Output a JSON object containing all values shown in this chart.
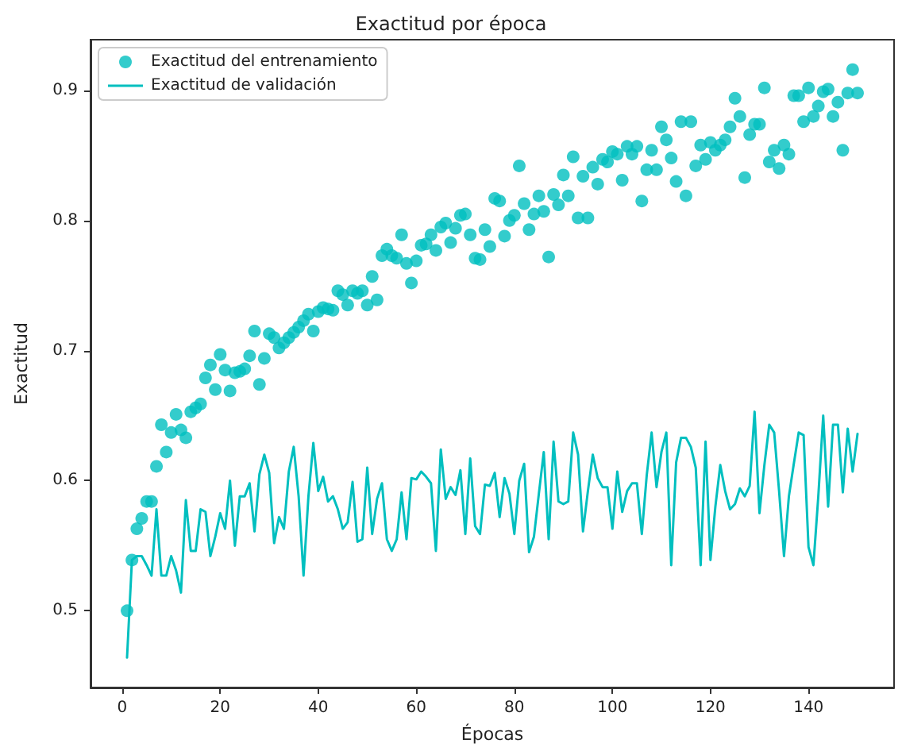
{
  "chart_data": {
    "type": "scatter",
    "title": "Exactitud por época",
    "xlabel": "Épocas",
    "ylabel": "Exactitud",
    "x": [
      1,
      2,
      3,
      4,
      5,
      6,
      7,
      8,
      9,
      10,
      11,
      12,
      13,
      14,
      15,
      16,
      17,
      18,
      19,
      20,
      21,
      22,
      23,
      24,
      25,
      26,
      27,
      28,
      29,
      30,
      31,
      32,
      33,
      34,
      35,
      36,
      37,
      38,
      39,
      40,
      41,
      42,
      43,
      44,
      45,
      46,
      47,
      48,
      49,
      50,
      51,
      52,
      53,
      54,
      55,
      56,
      57,
      58,
      59,
      60,
      61,
      62,
      63,
      64,
      65,
      66,
      67,
      68,
      69,
      70,
      71,
      72,
      73,
      74,
      75,
      76,
      77,
      78,
      79,
      80,
      81,
      82,
      83,
      84,
      85,
      86,
      87,
      88,
      89,
      90,
      91,
      92,
      93,
      94,
      95,
      96,
      97,
      98,
      99,
      100,
      101,
      102,
      103,
      104,
      105,
      106,
      107,
      108,
      109,
      110,
      111,
      112,
      113,
      114,
      115,
      116,
      117,
      118,
      119,
      120,
      121,
      122,
      123,
      124,
      125,
      126,
      127,
      128,
      129,
      130,
      131,
      132,
      133,
      134,
      135,
      136,
      137,
      138,
      139,
      140,
      141,
      142,
      143,
      144,
      145,
      146,
      147,
      148,
      149,
      150
    ],
    "xlim": [
      -6.45,
      157.45
    ],
    "xticks": [
      0,
      20,
      40,
      60,
      80,
      100,
      120,
      140
    ],
    "ylim": [
      0.441,
      0.939
    ],
    "yticks": [
      0.5,
      0.6,
      0.7,
      0.8,
      0.9
    ],
    "legend": "top left",
    "series": [
      {
        "name": "Exactitud del entrenamiento",
        "marker": "circle",
        "color": "#00bfbf",
        "values": [
          0.5,
          0.539,
          0.563,
          0.571,
          0.584,
          0.584,
          0.611,
          0.643,
          0.622,
          0.637,
          0.651,
          0.639,
          0.633,
          0.653,
          0.656,
          0.659,
          0.679,
          0.689,
          0.67,
          0.697,
          0.685,
          0.669,
          0.683,
          0.684,
          0.686,
          0.696,
          0.715,
          0.674,
          0.694,
          0.713,
          0.71,
          0.702,
          0.706,
          0.71,
          0.714,
          0.718,
          0.723,
          0.728,
          0.715,
          0.73,
          0.733,
          0.732,
          0.731,
          0.746,
          0.743,
          0.735,
          0.746,
          0.744,
          0.746,
          0.735,
          0.757,
          0.739,
          0.773,
          0.778,
          0.773,
          0.771,
          0.789,
          0.767,
          0.752,
          0.769,
          0.781,
          0.782,
          0.789,
          0.777,
          0.795,
          0.798,
          0.783,
          0.794,
          0.804,
          0.805,
          0.789,
          0.771,
          0.77,
          0.793,
          0.78,
          0.817,
          0.815,
          0.788,
          0.8,
          0.804,
          0.842,
          0.813,
          0.793,
          0.805,
          0.819,
          0.807,
          0.772,
          0.82,
          0.812,
          0.835,
          0.819,
          0.849,
          0.802,
          0.834,
          0.802,
          0.841,
          0.828,
          0.847,
          0.845,
          0.853,
          0.851,
          0.831,
          0.857,
          0.851,
          0.857,
          0.815,
          0.839,
          0.854,
          0.839,
          0.872,
          0.862,
          0.848,
          0.83,
          0.876,
          0.819,
          0.876,
          0.842,
          0.858,
          0.847,
          0.86,
          0.854,
          0.858,
          0.862,
          0.872,
          0.894,
          0.88,
          0.833,
          0.866,
          0.874,
          0.874,
          0.902,
          0.845,
          0.854,
          0.84,
          0.858,
          0.851,
          0.896,
          0.896,
          0.876,
          0.902,
          0.88,
          0.888,
          0.899,
          0.901,
          0.88,
          0.891,
          0.854,
          0.898,
          0.916,
          0.898
        ]
      },
      {
        "name": "Exactitud de validación",
        "type": "line",
        "marker": "none",
        "line_style": "solid",
        "color": "#00bfbf",
        "values": [
          0.464,
          0.539,
          0.542,
          0.542,
          0.535,
          0.527,
          0.578,
          0.527,
          0.527,
          0.542,
          0.531,
          0.514,
          0.585,
          0.546,
          0.546,
          0.578,
          0.576,
          0.542,
          0.557,
          0.575,
          0.563,
          0.6,
          0.55,
          0.588,
          0.588,
          0.598,
          0.561,
          0.605,
          0.62,
          0.606,
          0.552,
          0.572,
          0.563,
          0.607,
          0.626,
          0.588,
          0.527,
          0.588,
          0.629,
          0.592,
          0.603,
          0.584,
          0.588,
          0.578,
          0.563,
          0.568,
          0.599,
          0.553,
          0.555,
          0.61,
          0.559,
          0.586,
          0.598,
          0.555,
          0.546,
          0.555,
          0.591,
          0.555,
          0.602,
          0.601,
          0.607,
          0.603,
          0.598,
          0.546,
          0.624,
          0.586,
          0.595,
          0.589,
          0.608,
          0.559,
          0.617,
          0.565,
          0.559,
          0.597,
          0.596,
          0.606,
          0.572,
          0.602,
          0.59,
          0.559,
          0.6,
          0.613,
          0.545,
          0.557,
          0.59,
          0.622,
          0.555,
          0.63,
          0.584,
          0.582,
          0.584,
          0.637,
          0.62,
          0.561,
          0.592,
          0.62,
          0.602,
          0.595,
          0.595,
          0.563,
          0.607,
          0.576,
          0.592,
          0.598,
          0.598,
          0.559,
          0.604,
          0.637,
          0.595,
          0.622,
          0.637,
          0.535,
          0.614,
          0.633,
          0.633,
          0.626,
          0.61,
          0.535,
          0.63,
          0.539,
          0.58,
          0.612,
          0.592,
          0.578,
          0.582,
          0.594,
          0.588,
          0.596,
          0.653,
          0.575,
          0.612,
          0.643,
          0.637,
          0.592,
          0.542,
          0.588,
          0.613,
          0.637,
          0.635,
          0.549,
          0.535,
          0.588,
          0.65,
          0.58,
          0.643,
          0.643,
          0.591,
          0.64,
          0.607,
          0.636
        ]
      }
    ]
  }
}
